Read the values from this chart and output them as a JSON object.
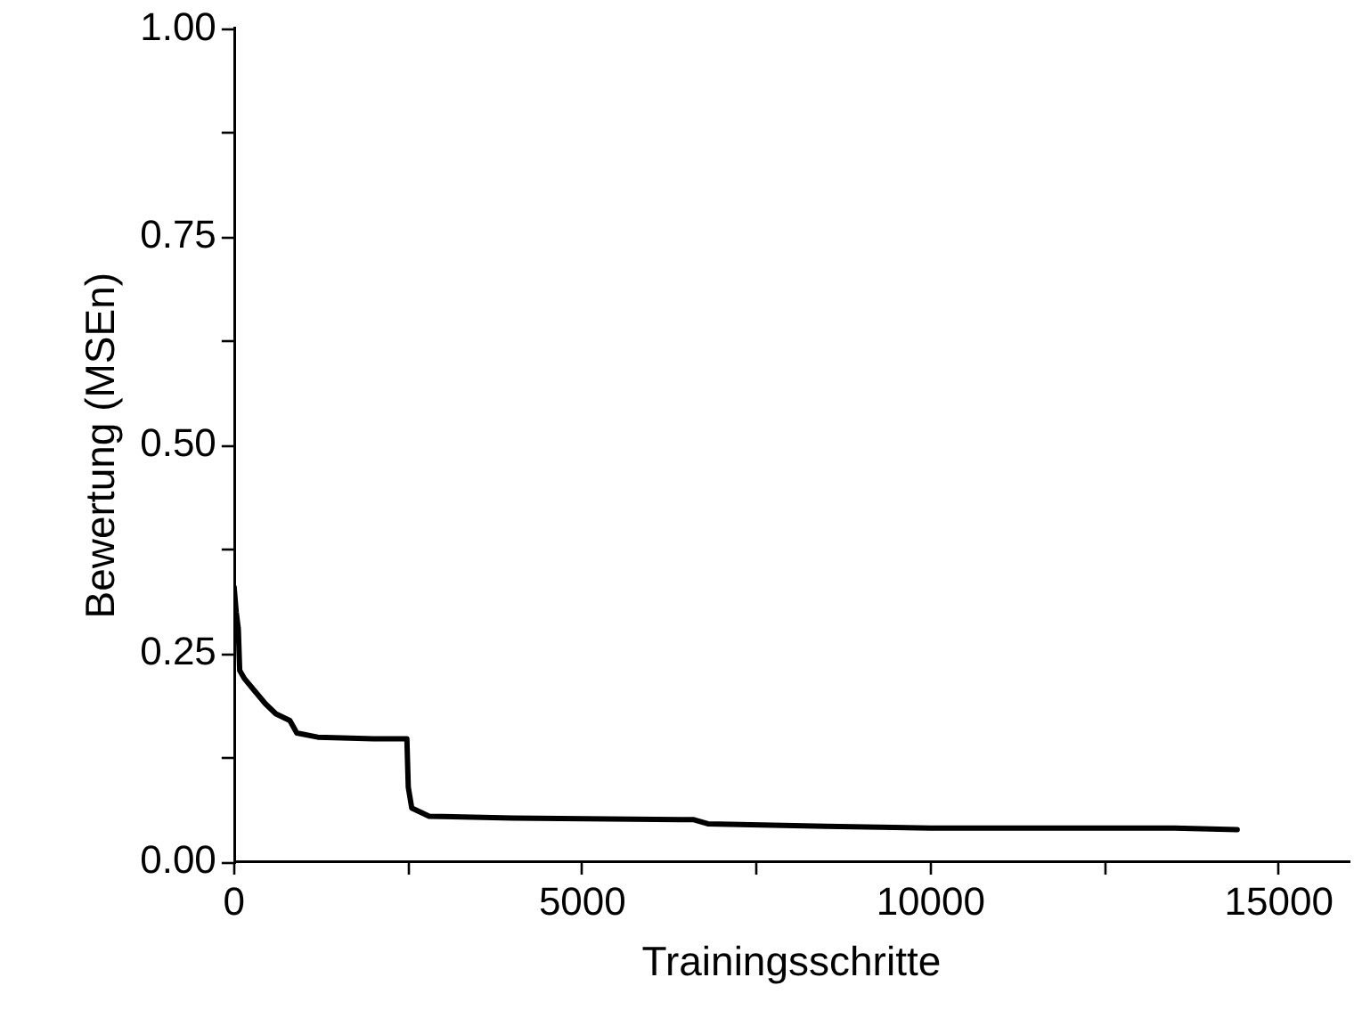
{
  "chart_data": {
    "type": "line",
    "xlabel": "Trainingsschritte",
    "ylabel": "Bewertung (MSEn)",
    "xlim": [
      0,
      16000
    ],
    "xticks": [
      0,
      {
        "value": 2500,
        "label": null
      },
      5000,
      {
        "value": 7500,
        "label": null
      },
      10000,
      {
        "value": 12500,
        "label": null
      },
      15000
    ],
    "ylim": [
      0,
      1
    ],
    "yticks": [
      {
        "value": 0,
        "label": "0.00"
      },
      {
        "value": 0.125,
        "label": null
      },
      {
        "value": 0.25,
        "label": "0.25"
      },
      {
        "value": 0.375,
        "label": null
      },
      {
        "value": 0.5,
        "label": "0.50"
      },
      {
        "value": 0.625,
        "label": null
      },
      {
        "value": 0.75,
        "label": "0.75"
      },
      {
        "value": 0.875,
        "label": null
      },
      {
        "value": 1,
        "label": "1.00"
      }
    ],
    "grid": false,
    "legend": false,
    "marker": "none",
    "line_style": "solid",
    "series": [
      {
        "color": "#000000",
        "x": [
          0,
          30,
          60,
          80,
          150,
          300,
          450,
          600,
          800,
          900,
          1200,
          2000,
          2480,
          2500,
          2550,
          2800,
          4000,
          6600,
          6800,
          8500,
          10000,
          13500,
          14400
        ],
        "values": [
          0.33,
          0.3,
          0.28,
          0.23,
          0.22,
          0.205,
          0.19,
          0.178,
          0.17,
          0.155,
          0.15,
          0.148,
          0.148,
          0.09,
          0.065,
          0.055,
          0.053,
          0.051,
          0.046,
          0.043,
          0.041,
          0.041,
          0.039
        ]
      }
    ]
  }
}
